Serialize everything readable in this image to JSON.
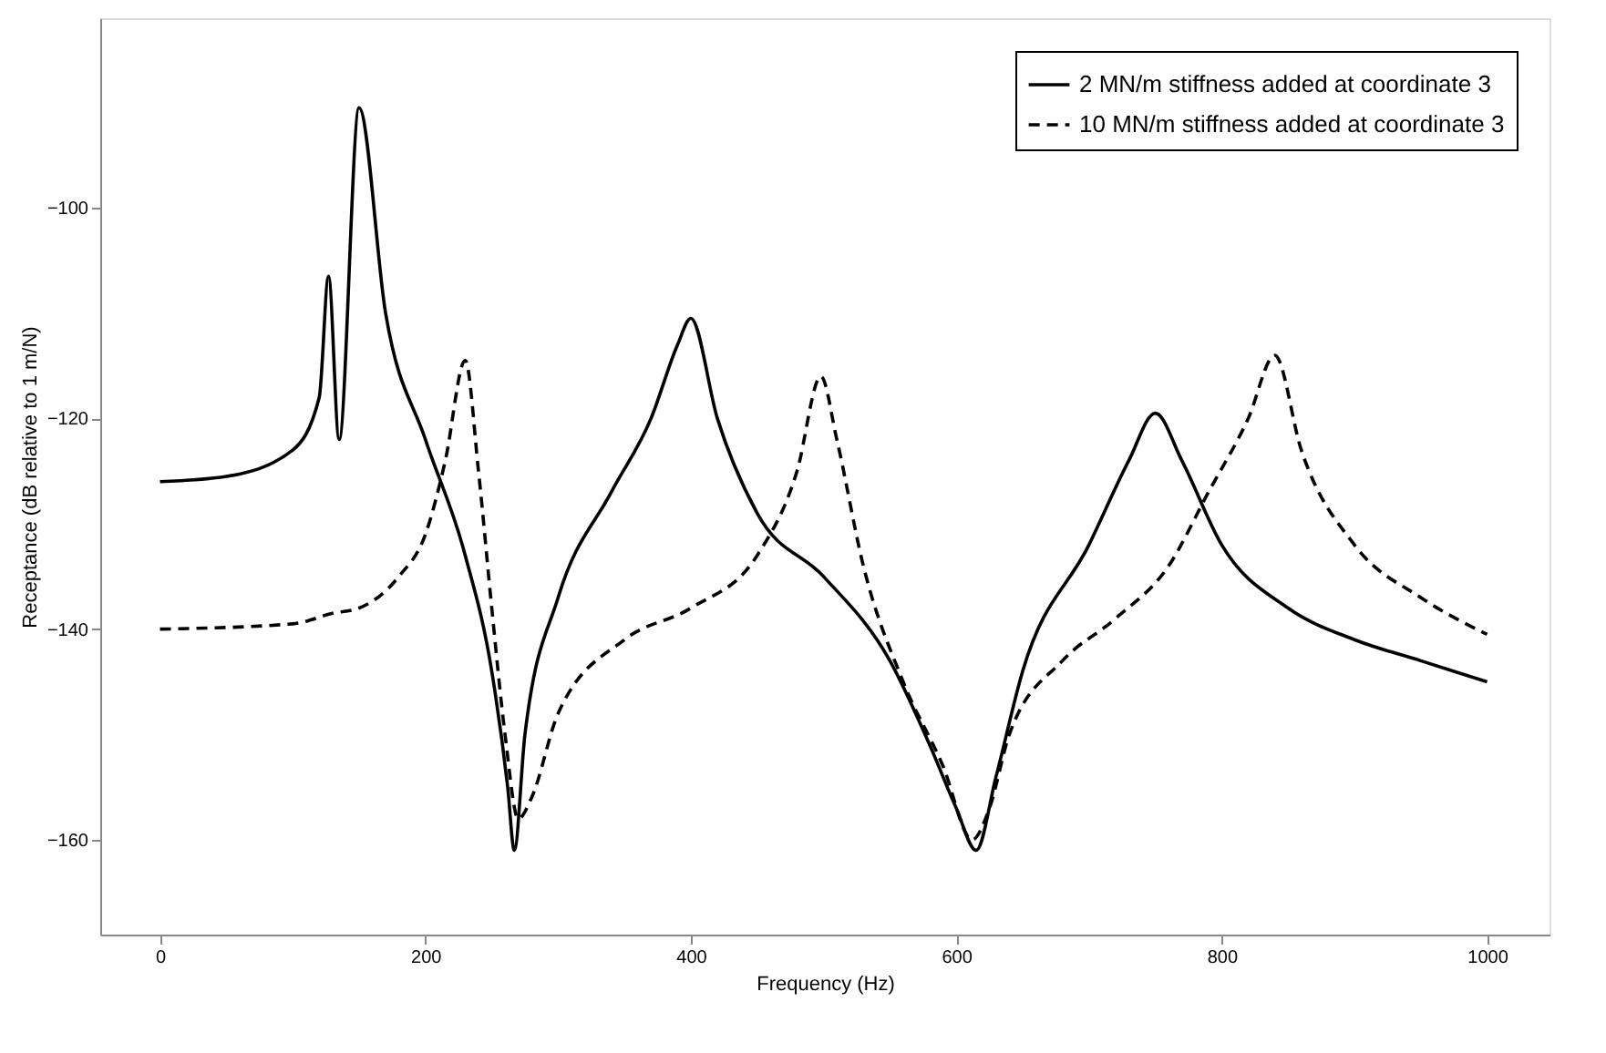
{
  "chart_data": {
    "type": "line",
    "xlabel": "Frequency (Hz)",
    "ylabel": "Receptance (dB relative to 1 m/N)",
    "xlim": [
      -45,
      1047
    ],
    "xticks": [
      0,
      200,
      400,
      600,
      800,
      1000
    ],
    "ylim": [
      -169,
      -82
    ],
    "yticks": [
      -100,
      -120,
      -140,
      -160
    ],
    "grid": false,
    "legend": "top right",
    "marker": "none",
    "series": [
      {
        "name": "2 MN/m stiffness added at coordinate 3",
        "color": "#000000",
        "line_style": "solid",
        "x": [
          0,
          50,
          100,
          120,
          127,
          135,
          150,
          170,
          200,
          230,
          250,
          262,
          267,
          275,
          300,
          340,
          370,
          390,
          400,
          420,
          450,
          500,
          550,
          580,
          600,
          615,
          630,
          650,
          700,
          730,
          750,
          770,
          800,
          850,
          900,
          950,
          1000
        ],
        "values": [
          -126,
          -125.5,
          -123,
          -118,
          -106.5,
          -122,
          -90.5,
          -110,
          -122,
          -133,
          -144,
          -155,
          -161,
          -150,
          -137,
          -127,
          -120,
          -113,
          -110.5,
          -120,
          -129,
          -135,
          -143,
          -151,
          -157,
          -161,
          -154,
          -144,
          -132,
          -124,
          -119.5,
          -124,
          -132,
          -138,
          -141,
          -143,
          -145
        ]
      },
      {
        "name": "10 MN/m stiffness added at coordinate 3",
        "color": "#000000",
        "line_style": "dashed",
        "x": [
          0,
          100,
          130,
          150,
          180,
          200,
          215,
          230,
          240,
          250,
          260,
          270,
          280,
          300,
          350,
          400,
          450,
          480,
          498,
          510,
          530,
          560,
          590,
          612,
          625,
          640,
          680,
          720,
          760,
          790,
          820,
          840,
          860,
          900,
          950,
          1000
        ],
        "values": [
          -140,
          -139.5,
          -138.5,
          -138,
          -135,
          -131,
          -124,
          -114.5,
          -125,
          -138,
          -150,
          -158,
          -156,
          -148,
          -141,
          -138,
          -133,
          -125,
          -116,
          -122,
          -134,
          -145,
          -153,
          -160,
          -157,
          -150,
          -143,
          -139,
          -134,
          -127,
          -120,
          -114,
          -123,
          -132,
          -137,
          -140.5
        ]
      }
    ]
  }
}
